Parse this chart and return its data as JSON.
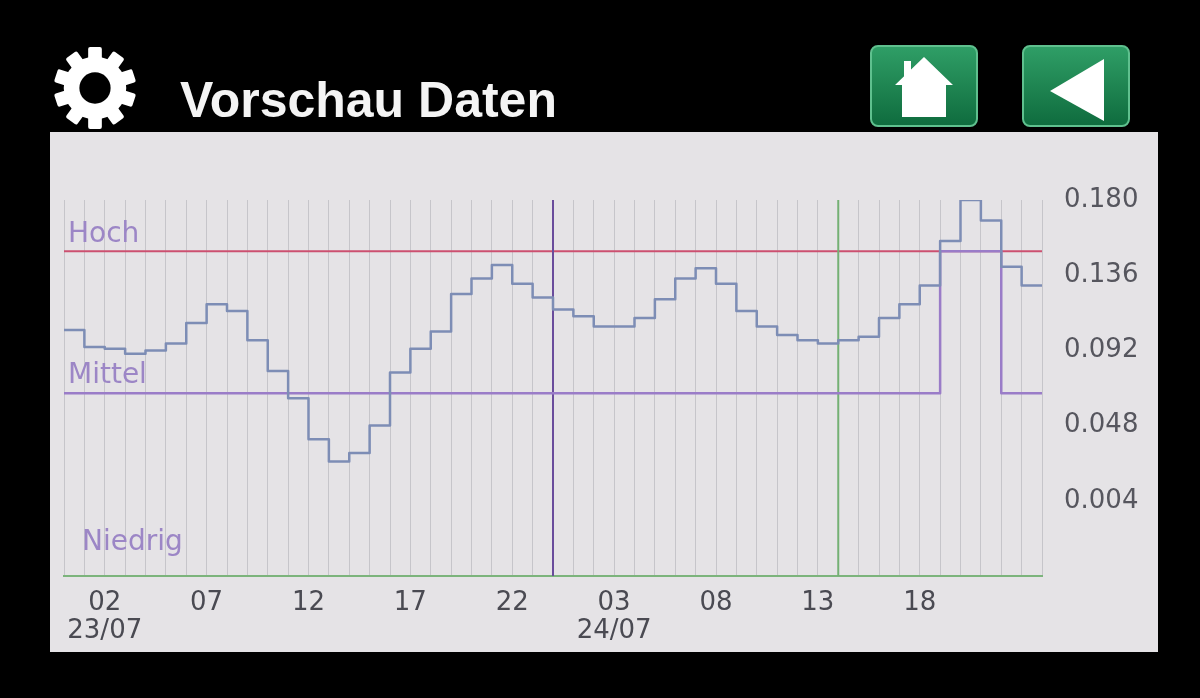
{
  "chart_data": {
    "type": "step",
    "title": "Vorschau Daten",
    "x": [
      "--07-23T00:00",
      "--07-23T01:00",
      "--07-23T02:00",
      "--07-23T03:00",
      "--07-23T04:00",
      "--07-23T05:00",
      "--07-23T06:00",
      "--07-23T07:00",
      "--07-23T08:00",
      "--07-23T09:00",
      "--07-23T10:00",
      "--07-23T11:00",
      "--07-23T12:00",
      "--07-23T13:00",
      "--07-23T14:00",
      "--07-23T15:00",
      "--07-23T16:00",
      "--07-23T17:00",
      "--07-23T18:00",
      "--07-23T19:00",
      "--07-23T20:00",
      "--07-23T21:00",
      "--07-23T22:00",
      "--07-23T23:00",
      "--07-24T00:00",
      "--07-24T01:00",
      "--07-24T02:00",
      "--07-24T03:00",
      "--07-24T04:00",
      "--07-24T05:00",
      "--07-24T06:00",
      "--07-24T07:00",
      "--07-24T08:00",
      "--07-24T09:00",
      "--07-24T10:00",
      "--07-24T11:00",
      "--07-24T12:00",
      "--07-24T13:00",
      "--07-24T14:00",
      "--07-24T15:00",
      "--07-24T16:00",
      "--07-24T17:00",
      "--07-24T18:00",
      "--07-24T19:00",
      "--07-24T20:00",
      "--07-24T21:00",
      "--07-24T22:00",
      "--07-24T23:00",
      "--07-25T00:00"
    ],
    "xlim": [
      "--07-23T00:00",
      "--07-25T00:00"
    ],
    "xticks": [
      {
        "value": "--07-23T00:00",
        "label": null
      },
      {
        "value": "--07-23T01:00",
        "label": null
      },
      {
        "value": "--07-23T02:00",
        "label": "02\n23/07"
      },
      {
        "value": "--07-23T03:00",
        "label": null
      },
      {
        "value": "--07-23T04:00",
        "label": null
      },
      {
        "value": "--07-23T05:00",
        "label": null
      },
      {
        "value": "--07-23T06:00",
        "label": null
      },
      {
        "value": "--07-23T07:00",
        "label": "07"
      },
      {
        "value": "--07-23T08:00",
        "label": null
      },
      {
        "value": "--07-23T09:00",
        "label": null
      },
      {
        "value": "--07-23T10:00",
        "label": null
      },
      {
        "value": "--07-23T11:00",
        "label": null
      },
      {
        "value": "--07-23T12:00",
        "label": "12"
      },
      {
        "value": "--07-23T13:00",
        "label": null
      },
      {
        "value": "--07-23T14:00",
        "label": null
      },
      {
        "value": "--07-23T15:00",
        "label": null
      },
      {
        "value": "--07-23T16:00",
        "label": null
      },
      {
        "value": "--07-23T17:00",
        "label": "17"
      },
      {
        "value": "--07-23T18:00",
        "label": null
      },
      {
        "value": "--07-23T19:00",
        "label": null
      },
      {
        "value": "--07-23T20:00",
        "label": null
      },
      {
        "value": "--07-23T21:00",
        "label": null
      },
      {
        "value": "--07-23T22:00",
        "label": "22"
      },
      {
        "value": "--07-23T23:00",
        "label": null
      },
      {
        "value": "--07-24T00:00",
        "label": null
      },
      {
        "value": "--07-24T01:00",
        "label": null
      },
      {
        "value": "--07-24T02:00",
        "label": null
      },
      {
        "value": "--07-24T03:00",
        "label": "03\n24/07"
      },
      {
        "value": "--07-24T04:00",
        "label": null
      },
      {
        "value": "--07-24T05:00",
        "label": null
      },
      {
        "value": "--07-24T06:00",
        "label": null
      },
      {
        "value": "--07-24T07:00",
        "label": null
      },
      {
        "value": "--07-24T08:00",
        "label": "08"
      },
      {
        "value": "--07-24T09:00",
        "label": null
      },
      {
        "value": "--07-24T10:00",
        "label": null
      },
      {
        "value": "--07-24T11:00",
        "label": null
      },
      {
        "value": "--07-24T12:00",
        "label": null
      },
      {
        "value": "--07-24T13:00",
        "label": "13"
      },
      {
        "value": "--07-24T14:00",
        "label": null
      },
      {
        "value": "--07-24T15:00",
        "label": null
      },
      {
        "value": "--07-24T16:00",
        "label": null
      },
      {
        "value": "--07-24T17:00",
        "label": null
      },
      {
        "value": "--07-24T18:00",
        "label": "18"
      },
      {
        "value": "--07-24T19:00",
        "label": null
      },
      {
        "value": "--07-24T20:00",
        "label": null
      },
      {
        "value": "--07-24T21:00",
        "label": null
      },
      {
        "value": "--07-24T22:00",
        "label": null
      },
      {
        "value": "--07-24T23:00",
        "label": null
      },
      {
        "value": "--07-25T00:00",
        "label": null
      }
    ],
    "ylim": [
      -0.04,
      0.18
    ],
    "yticks": [
      0.004,
      0.048,
      0.092,
      0.136,
      {
        "value": 0.18,
        "label": "0.180"
      }
    ],
    "series": [
      {
        "color": "#7d8db5",
        "values": [
          0.104,
          0.094,
          0.093,
          0.09,
          0.092,
          0.096,
          0.108,
          0.119,
          0.115,
          0.098,
          0.08,
          0.064,
          0.04,
          0.027,
          0.032,
          0.048,
          0.079,
          0.093,
          0.103,
          0.125,
          0.134,
          0.142,
          0.131,
          0.123,
          0.116,
          0.112,
          0.106,
          0.106,
          0.111,
          0.122,
          0.134,
          0.14,
          0.131,
          0.115,
          0.106,
          0.101,
          0.098,
          0.096,
          0.098,
          0.1,
          0.111,
          0.119,
          0.13,
          0.156,
          0.18,
          0.168,
          0.141,
          0.13,
          0.13
        ]
      },
      {
        "color": "#9a7cc8",
        "values": [
          0.067,
          0.067,
          0.067,
          0.067,
          0.067,
          0.067,
          0.067,
          0.067,
          0.067,
          0.067,
          0.067,
          0.067,
          0.067,
          0.067,
          0.067,
          0.067,
          0.067,
          0.067,
          0.067,
          0.067,
          0.067,
          0.067,
          0.067,
          0.067,
          0.067,
          0.067,
          0.067,
          0.067,
          0.067,
          0.067,
          0.067,
          0.067,
          0.067,
          0.067,
          0.067,
          0.067,
          0.067,
          0.067,
          0.067,
          0.067,
          0.067,
          0.067,
          0.067,
          0.15,
          0.15,
          0.15,
          0.067,
          0.067,
          0.067
        ]
      }
    ],
    "ref_lines": [
      {
        "axis": "y",
        "value": 0.15,
        "label": "Hoch",
        "color": "#cc5070"
      },
      {
        "axis": "x",
        "value": "--07-24T00:00",
        "color": "#6a4c9c"
      },
      {
        "axis": "x",
        "value": "--07-24T14:00",
        "color": "#74b074"
      }
    ],
    "annotations": [
      {
        "text": "Mittel",
        "x": "--07-23T00:00",
        "y": 0.067
      },
      "Niedrig"
    ],
    "grid": "x"
  }
}
